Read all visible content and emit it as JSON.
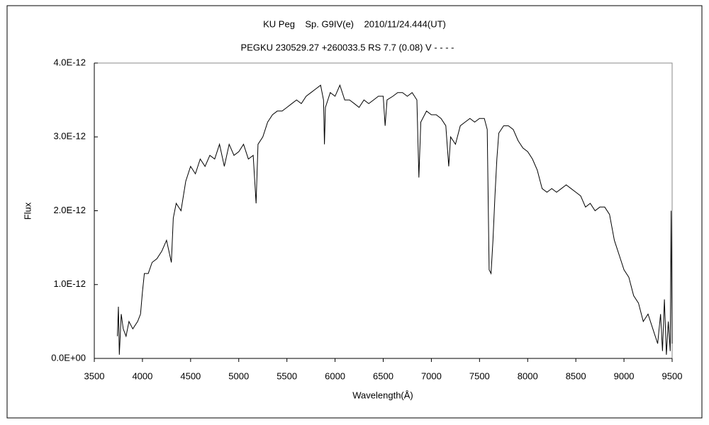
{
  "chart_data": {
    "type": "line",
    "title": "KU Peg    Sp. G9IV(e)    2010/11/24.444(UT)",
    "subtitle": "PEGKU 230529.27 +260033.5 RS 7.7 (0.08) V - - - -",
    "x_label": "Wavelength(Å)",
    "y_label": "Flux",
    "xlim": [
      3500,
      9500
    ],
    "xticks": [
      3500,
      4000,
      4500,
      5000,
      5500,
      6000,
      6500,
      7000,
      7500,
      8000,
      8500,
      9000,
      9500
    ],
    "ylim": [
      0,
      4e-12
    ],
    "yticks": [
      {
        "value": 0,
        "label": "0.0E+00"
      },
      {
        "value": 1e-12,
        "label": "1.0E-12"
      },
      {
        "value": 2e-12,
        "label": "2.0E-12"
      },
      {
        "value": 3e-12,
        "label": "3.0E-12"
      },
      {
        "value": 4e-12,
        "label": "4.0E-12"
      }
    ],
    "grid": false,
    "color": "#000000",
    "x": [
      3740,
      3750,
      3760,
      3780,
      3800,
      3830,
      3860,
      3900,
      3950,
      3980,
      4000,
      4020,
      4060,
      4100,
      4150,
      4200,
      4250,
      4300,
      4320,
      4350,
      4400,
      4450,
      4500,
      4550,
      4600,
      4650,
      4700,
      4750,
      4800,
      4850,
      4900,
      4950,
      5000,
      5050,
      5100,
      5150,
      5180,
      5200,
      5250,
      5300,
      5350,
      5400,
      5450,
      5500,
      5550,
      5600,
      5650,
      5700,
      5750,
      5800,
      5850,
      5880,
      5890,
      5900,
      5950,
      6000,
      6050,
      6100,
      6150,
      6200,
      6250,
      6300,
      6350,
      6400,
      6450,
      6500,
      6520,
      6540,
      6600,
      6650,
      6700,
      6750,
      6800,
      6850,
      6870,
      6890,
      6950,
      7000,
      7050,
      7100,
      7150,
      7180,
      7200,
      7250,
      7300,
      7350,
      7400,
      7450,
      7500,
      7550,
      7580,
      7600,
      7620,
      7640,
      7660,
      7680,
      7700,
      7750,
      7800,
      7850,
      7900,
      7950,
      8000,
      8050,
      8100,
      8150,
      8200,
      8250,
      8300,
      8350,
      8400,
      8450,
      8500,
      8550,
      8600,
      8650,
      8700,
      8750,
      8800,
      8850,
      8900,
      8950,
      9000,
      9050,
      9100,
      9150,
      9200,
      9250,
      9300,
      9350,
      9380,
      9400,
      9420,
      9440,
      9460,
      9480,
      9490,
      9500
    ],
    "values": [
      3e-13,
      7e-13,
      5e-14,
      6e-13,
      4e-13,
      3e-13,
      5e-13,
      4e-13,
      5e-13,
      6e-13,
      9e-13,
      1.15e-12,
      1.15e-12,
      1.3e-12,
      1.35e-12,
      1.45e-12,
      1.6e-12,
      1.3e-12,
      1.9e-12,
      2.1e-12,
      2e-12,
      2.4e-12,
      2.6e-12,
      2.5e-12,
      2.7e-12,
      2.6e-12,
      2.75e-12,
      2.7e-12,
      2.9e-12,
      2.6e-12,
      2.9e-12,
      2.75e-12,
      2.8e-12,
      2.9e-12,
      2.7e-12,
      2.75e-12,
      2.1e-12,
      2.9e-12,
      3e-12,
      3.2e-12,
      3.3e-12,
      3.35e-12,
      3.35e-12,
      3.4e-12,
      3.45e-12,
      3.5e-12,
      3.45e-12,
      3.55e-12,
      3.6e-12,
      3.65e-12,
      3.7e-12,
      3.5e-12,
      2.9e-12,
      3.4e-12,
      3.6e-12,
      3.55e-12,
      3.7e-12,
      3.5e-12,
      3.5e-12,
      3.45e-12,
      3.4e-12,
      3.5e-12,
      3.45e-12,
      3.5e-12,
      3.55e-12,
      3.55e-12,
      3.15e-12,
      3.5e-12,
      3.55e-12,
      3.6e-12,
      3.6e-12,
      3.55e-12,
      3.6e-12,
      3.5e-12,
      2.45e-12,
      3.2e-12,
      3.35e-12,
      3.3e-12,
      3.3e-12,
      3.25e-12,
      3.15e-12,
      2.6e-12,
      3e-12,
      2.9e-12,
      3.15e-12,
      3.2e-12,
      3.25e-12,
      3.2e-12,
      3.25e-12,
      3.25e-12,
      3.1e-12,
      1.2e-12,
      1.15e-12,
      1.6e-12,
      2.2e-12,
      2.7e-12,
      3.05e-12,
      3.15e-12,
      3.15e-12,
      3.1e-12,
      2.95e-12,
      2.85e-12,
      2.8e-12,
      2.7e-12,
      2.55e-12,
      2.3e-12,
      2.25e-12,
      2.3e-12,
      2.25e-12,
      2.3e-12,
      2.35e-12,
      2.3e-12,
      2.25e-12,
      2.2e-12,
      2.05e-12,
      2.1e-12,
      2e-12,
      2.05e-12,
      2.05e-12,
      1.95e-12,
      1.6e-12,
      1.4e-12,
      1.2e-12,
      1.1e-12,
      8.5e-13,
      7.5e-13,
      5e-13,
      6e-13,
      4e-13,
      2e-13,
      6e-13,
      1e-13,
      8e-13,
      5e-14,
      5e-13,
      1e-13,
      2e-12,
      2e-13
    ]
  }
}
